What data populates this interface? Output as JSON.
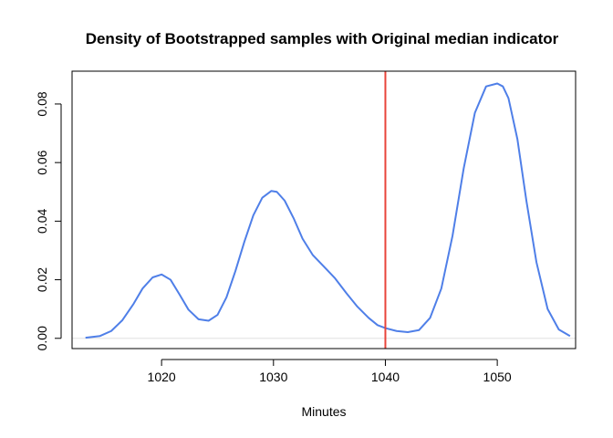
{
  "chart_data": {
    "type": "line",
    "title": "Density of Bootstrapped samples with Original median indicator",
    "xlabel": "Minutes",
    "ylabel": "",
    "xlim": [
      1012,
      1057
    ],
    "ylim": [
      -0.0035,
      0.0912
    ],
    "x_ticks": [
      1020,
      1030,
      1040,
      1050
    ],
    "y_ticks": [
      0.0,
      0.02,
      0.04,
      0.06,
      0.08
    ],
    "y_tick_labels": [
      "0.00",
      "0.02",
      "0.04",
      "0.06",
      "0.08"
    ],
    "grid": false,
    "baseline": 0,
    "series": [
      {
        "color": "#4f7fe8",
        "x": [
          1013.2,
          1014.5,
          1015.5,
          1016.5,
          1017.5,
          1018.3,
          1019.2,
          1020.0,
          1020.8,
          1021.6,
          1022.4,
          1023.3,
          1024.2,
          1025.0,
          1025.8,
          1026.6,
          1027.4,
          1028.2,
          1029.0,
          1029.8,
          1030.3,
          1031.0,
          1031.8,
          1032.6,
          1033.5,
          1034.5,
          1035.5,
          1036.5,
          1037.5,
          1038.5,
          1039.3,
          1040.0,
          1041.0,
          1042.0,
          1043.0,
          1044.0,
          1045.0,
          1046.0,
          1047.0,
          1048.0,
          1049.0,
          1050.0,
          1050.5,
          1051.0,
          1051.8,
          1052.6,
          1053.5,
          1054.5,
          1055.5,
          1056.5
        ],
        "y": [
          0.0002,
          0.0008,
          0.0025,
          0.0062,
          0.0118,
          0.017,
          0.0208,
          0.0218,
          0.02,
          0.015,
          0.0098,
          0.0065,
          0.006,
          0.008,
          0.014,
          0.023,
          0.033,
          0.042,
          0.048,
          0.0503,
          0.05,
          0.047,
          0.041,
          0.034,
          0.0285,
          0.0245,
          0.0205,
          0.0155,
          0.0108,
          0.007,
          0.0045,
          0.0035,
          0.0025,
          0.0021,
          0.0028,
          0.007,
          0.017,
          0.035,
          0.058,
          0.077,
          0.086,
          0.087,
          0.086,
          0.082,
          0.068,
          0.047,
          0.026,
          0.01,
          0.003,
          0.0008
        ]
      }
    ],
    "reference_lines": [
      {
        "axis": "x",
        "value": 1040,
        "color": "#e8443a"
      }
    ],
    "baseline_color": "#e0e0e0",
    "frame_color": "#000000"
  }
}
